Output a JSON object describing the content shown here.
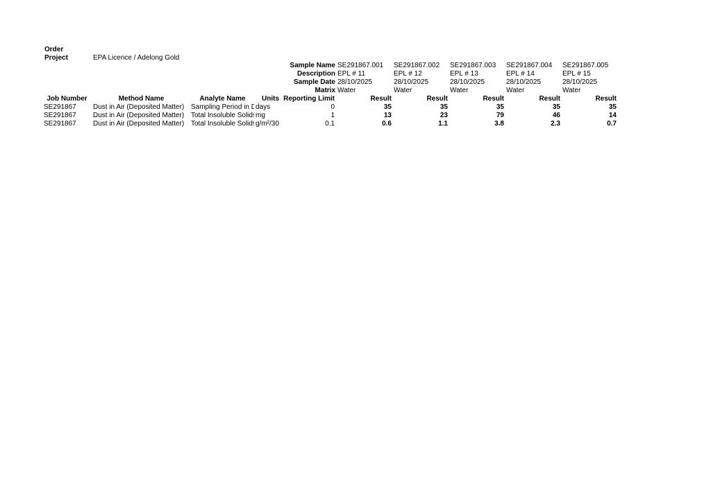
{
  "header": {
    "order_label": "Order",
    "project_label": "Project",
    "project": "EPA Licence / Adelong Gold"
  },
  "samples": {
    "labels": [
      "Sample Name",
      "Description",
      "Sample Date",
      "Matrix"
    ],
    "columns": [
      [
        "SE291867.001",
        "EPL # 11",
        "28/10/2025",
        "Water"
      ],
      [
        "SE291867.002",
        "EPL # 12",
        "28/10/2025",
        "Water"
      ],
      [
        "SE291867.003",
        "EPL # 13",
        "28/10/2025",
        "Water"
      ],
      [
        "SE291867.004",
        "EPL # 14",
        "28/10/2025",
        "Water"
      ],
      [
        "SE291867.005",
        "EPL # 15",
        "28/10/2025",
        "Water"
      ]
    ]
  },
  "table": {
    "columns": [
      "Job Number",
      "Method Name",
      "Analyte Name",
      "Units",
      "Reporting Limit",
      "Result",
      "Result",
      "Result",
      "Result",
      "Result"
    ],
    "rows": [
      [
        "SE291867",
        "Dust in Air (Deposited Matter)",
        "Sampling Period in Days",
        "days",
        "0",
        "35",
        "35",
        "35",
        "35",
        "35"
      ],
      [
        "SE291867",
        "Dust in Air (Deposited Matter)",
        "Total Insoluble Solids",
        "mg",
        "1",
        "13",
        "23",
        "79",
        "46",
        "14"
      ],
      [
        "SE291867",
        "Dust in Air (Deposited Matter)",
        "Total Insoluble Solids",
        "g/m²/30",
        "0.1",
        "0.6",
        "1.1",
        "3.8",
        "2.3",
        "0.7"
      ]
    ]
  }
}
